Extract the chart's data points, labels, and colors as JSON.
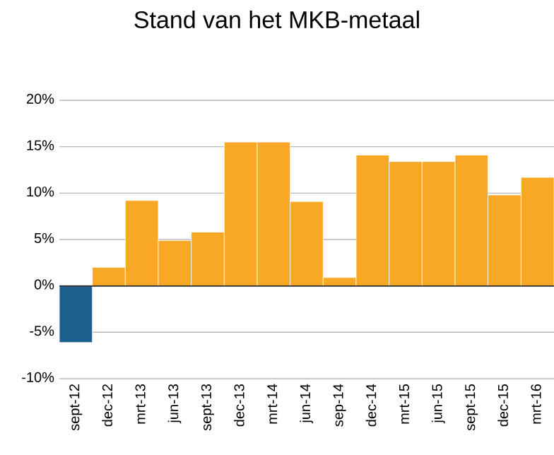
{
  "chart_data": {
    "type": "bar",
    "title": "Stand van het MKB-metaal",
    "categories": [
      "sept-12",
      "dec-12",
      "mrt-13",
      "jun-13",
      "sept-13",
      "dec-13",
      "mrt-14",
      "jun-14",
      "sep-14",
      "dec-14",
      "mrt-15",
      "jun-15",
      "sept-15",
      "dec-15",
      "mrt-16"
    ],
    "values": [
      -6.1,
      2.0,
      9.2,
      4.9,
      5.8,
      15.5,
      15.5,
      9.1,
      0.9,
      14.1,
      13.4,
      13.4,
      14.1,
      9.8,
      11.7
    ],
    "colors": [
      "#1c5f8f",
      "#f9a825",
      "#f9a825",
      "#f9a825",
      "#f9a825",
      "#f9a825",
      "#f9a825",
      "#f9a825",
      "#f9a825",
      "#f9a825",
      "#f9a825",
      "#f9a825",
      "#f9a825",
      "#f9a825",
      "#f9a825"
    ],
    "ylim": [
      -10,
      20
    ],
    "yticks": [
      {
        "value": -10,
        "label": "-10%"
      },
      {
        "value": -5,
        "label": "-5%"
      },
      {
        "value": 0,
        "label": "0%"
      },
      {
        "value": 5,
        "label": "5%"
      },
      {
        "value": 10,
        "label": "10%"
      },
      {
        "value": 15,
        "label": "15%"
      },
      {
        "value": 20,
        "label": "20%"
      }
    ],
    "grid": "y"
  }
}
